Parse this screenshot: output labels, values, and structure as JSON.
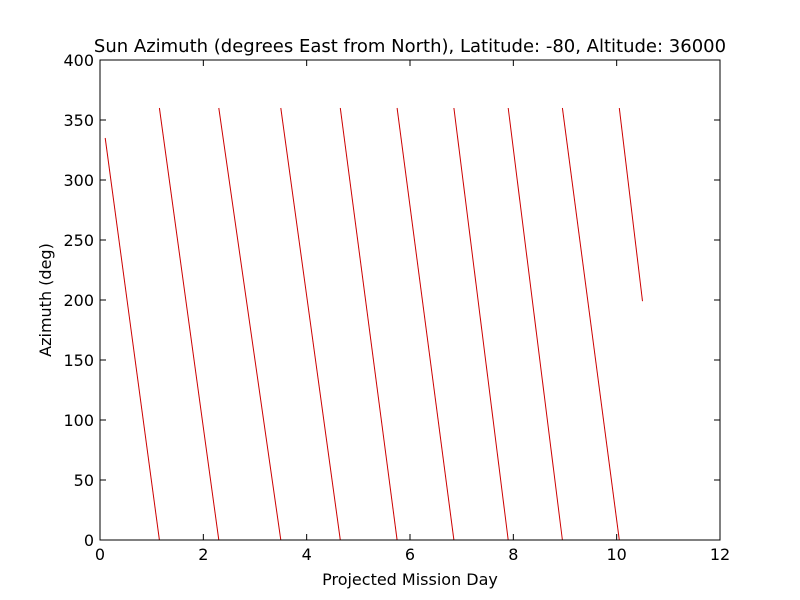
{
  "chart_data": {
    "type": "line",
    "title": "Sun Azimuth (degrees East from North), Latitude: -80, Altitude: 36000",
    "xlabel": "Projected Mission Day",
    "ylabel": "Azimuth (deg)",
    "xlim": [
      0,
      12
    ],
    "ylim": [
      0,
      400
    ],
    "xticks": [
      0,
      2,
      4,
      6,
      8,
      10,
      12
    ],
    "yticks": [
      0,
      50,
      100,
      150,
      200,
      250,
      300,
      350,
      400
    ],
    "grid": false,
    "legend": "none",
    "colors": {
      "series": "#cc0000",
      "axes": "#000000",
      "background": "#ffffff"
    },
    "series": [
      {
        "segments": [
          {
            "x": [
              0.1,
              1.15
            ],
            "y": [
              335,
              0
            ]
          },
          {
            "x": [
              1.15,
              2.3
            ],
            "y": [
              360,
              0
            ]
          },
          {
            "x": [
              2.3,
              3.5
            ],
            "y": [
              360,
              0
            ]
          },
          {
            "x": [
              3.5,
              4.65
            ],
            "y": [
              360,
              0
            ]
          },
          {
            "x": [
              4.65,
              5.75
            ],
            "y": [
              360,
              0
            ]
          },
          {
            "x": [
              5.75,
              6.85
            ],
            "y": [
              360,
              0
            ]
          },
          {
            "x": [
              6.85,
              7.9
            ],
            "y": [
              360,
              0
            ]
          },
          {
            "x": [
              7.9,
              8.95
            ],
            "y": [
              360,
              0
            ]
          },
          {
            "x": [
              8.95,
              10.05
            ],
            "y": [
              360,
              0
            ]
          },
          {
            "x": [
              10.05,
              10.5
            ],
            "y": [
              360,
              199
            ]
          }
        ]
      }
    ]
  }
}
